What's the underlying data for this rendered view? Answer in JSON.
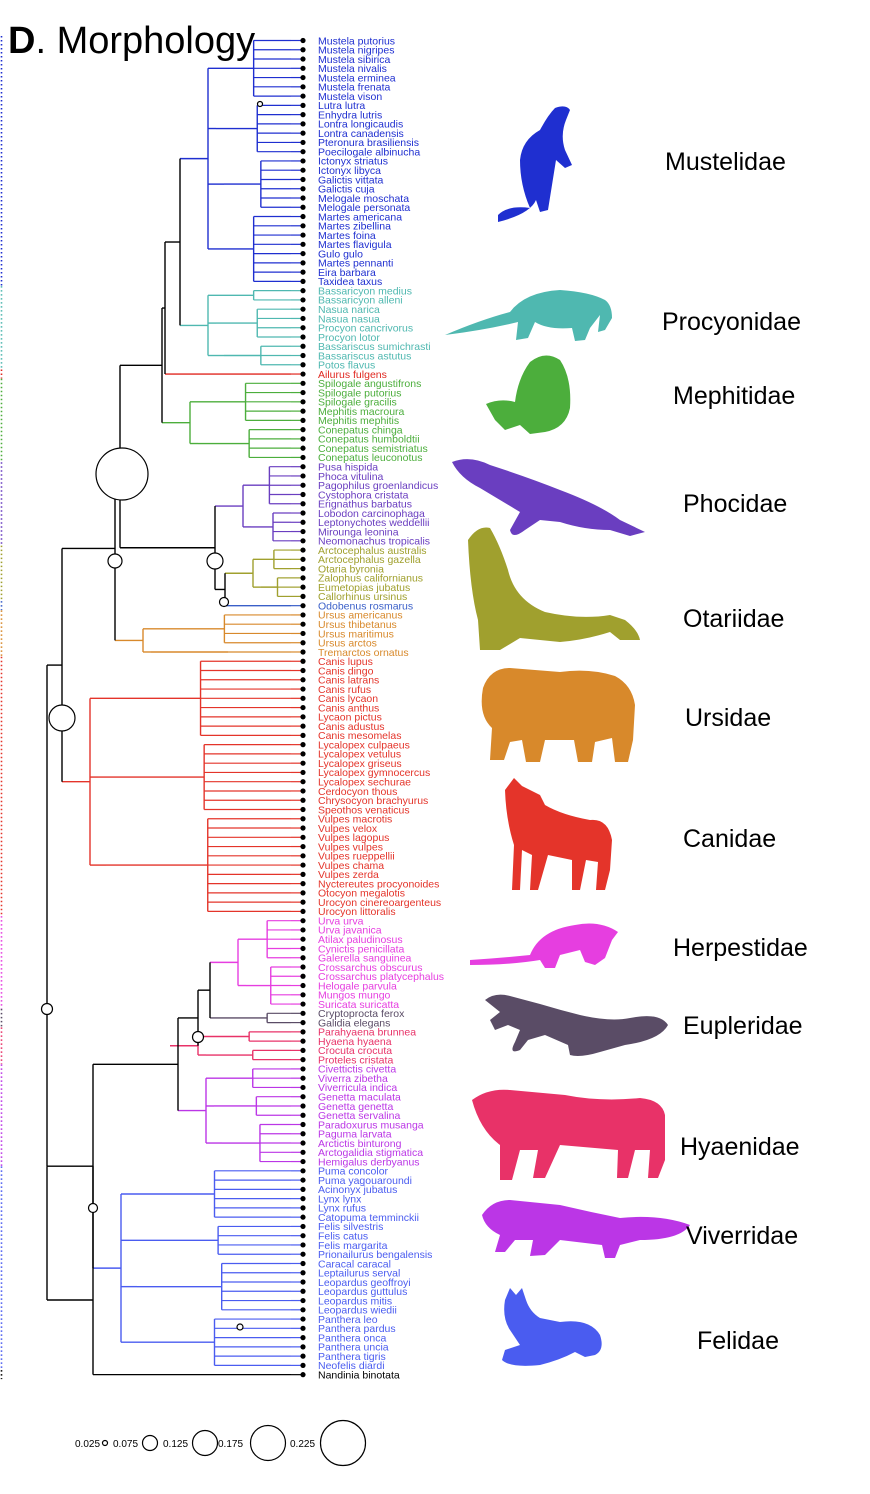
{
  "title_letter": "D",
  "title_text": ". Morphology",
  "colors": {
    "mustelidae": "#1f2fd0",
    "procyonidae": "#4fb8b0",
    "ailuridae": "#e02820",
    "mephitidae": "#4cae3c",
    "phocidae": "#6a3ec0",
    "otariidae": "#a0a02e",
    "odobenidae": "#3a5fc8",
    "ursidae": "#d8892b",
    "canidae": "#e4342a",
    "herpestidae": "#e63ee0",
    "eupleridae": "#5a4c66",
    "hyaenidae": "#e83268",
    "viverridae": "#bb36e6",
    "felidae": "#4a5cf0",
    "nandiniidae": "#000000"
  },
  "clades": [
    {
      "key": "mustelidae",
      "name": "Mustelidae",
      "silhouette": "weasel-silhouette",
      "tips": [
        "Mustela putorius",
        "Mustela nigripes",
        "Mustela sibirica",
        "Mustela nivalis",
        "Mustela erminea",
        "Mustela frenata",
        "Mustela vison",
        "Lutra lutra",
        "Enhydra lutris",
        "Lontra longicaudis",
        "Lontra canadensis",
        "Pteronura brasiliensis",
        "Poecilogale albinucha",
        "Ictonyx striatus",
        "Ictonyx libyca",
        "Galictis vittata",
        "Galictis cuja",
        "Melogale moschata",
        "Melogale personata",
        "Martes americana",
        "Martes zibellina",
        "Martes foina",
        "Martes flavigula",
        "Gulo gulo",
        "Martes pennanti",
        "Eira barbara",
        "Taxidea taxus"
      ]
    },
    {
      "key": "procyonidae",
      "name": "Procyonidae",
      "silhouette": "coati-silhouette",
      "tips": [
        "Bassaricyon medius",
        "Bassaricyon alleni",
        "Nasua narica",
        "Nasua nasua",
        "Procyon cancrivorus",
        "Procyon lotor",
        "Bassariscus sumichrasti",
        "Bassariscus astutus",
        "Potos flavus"
      ]
    },
    {
      "key": "ailuridae",
      "name": "",
      "silhouette": "",
      "tips": [
        "Ailurus fulgens"
      ]
    },
    {
      "key": "mephitidae",
      "name": "Mephitidae",
      "silhouette": "skunk-silhouette",
      "tips": [
        "Spilogale angustifrons",
        "Spilogale putorius",
        "Spilogale gracilis",
        "Mephitis macroura",
        "Mephitis mephitis",
        "Conepatus chinga",
        "Conepatus humboldtii",
        "Conepatus semistriatus",
        "Conepatus leuconotus"
      ]
    },
    {
      "key": "phocidae",
      "name": "Phocidae",
      "silhouette": "seal-silhouette",
      "tips": [
        "Pusa hispida",
        "Phoca vitulina",
        "Pagophilus groenlandicus",
        "Cystophora cristata",
        "Erignathus barbatus",
        "Lobodon carcinophaga",
        "Leptonychotes weddellii",
        "Mirounga leonina",
        "Neomonachus tropicalis"
      ]
    },
    {
      "key": "otariidae",
      "name": "Otariidae",
      "silhouette": "sea-lion-silhouette",
      "tips": [
        "Arctocephalus australis",
        "Arctocephalus gazella",
        "Otaria byronia",
        "Zalophus californianus",
        "Eumetopias jubatus",
        "Callorhinus ursinus"
      ]
    },
    {
      "key": "odobenidae",
      "name": "",
      "silhouette": "",
      "tips": [
        "Odobenus rosmarus"
      ]
    },
    {
      "key": "ursidae",
      "name": "Ursidae",
      "silhouette": "bear-silhouette",
      "tips": [
        "Ursus americanus",
        "Ursus thibetanus",
        "Ursus maritimus",
        "Ursus arctos",
        "Tremarctos ornatus"
      ]
    },
    {
      "key": "canidae",
      "name": "Canidae",
      "silhouette": "wolf-silhouette",
      "tips": [
        "Canis lupus",
        "Canis dingo",
        "Canis latrans",
        "Canis rufus",
        "Canis lycaon",
        "Canis anthus",
        "Lycaon pictus",
        "Canis adustus",
        "Canis mesomelas",
        "Lycalopex culpaeus",
        "Lycalopex vetulus",
        "Lycalopex griseus",
        "Lycalopex gymnocercus",
        "Lycalopex sechurae",
        "Cerdocyon thous",
        "Chrysocyon brachyurus",
        "Speothos venaticus",
        "Vulpes macrotis",
        "Vulpes velox",
        "Vulpes lagopus",
        "Vulpes vulpes",
        "Vulpes rueppellii",
        "Vulpes chama",
        "Vulpes zerda",
        "Nyctereutes procyonoides",
        "Otocyon megalotis",
        "Urocyon cinereoargenteus",
        "Urocyon littoralis"
      ]
    },
    {
      "key": "herpestidae",
      "name": "Herpestidae",
      "silhouette": "mongoose-silhouette",
      "tips": [
        "Urva urva",
        "Urva javanica",
        "Atilax paludinosus",
        "Cynictis penicillata",
        "Galerella sanguinea",
        "Crossarchus obscurus",
        "Crossarchus platycephalus",
        "Helogale parvula",
        "Mungos mungo",
        "Suricata suricatta"
      ]
    },
    {
      "key": "eupleridae",
      "name": "Eupleridae",
      "silhouette": "fossa-silhouette",
      "tips": [
        "Cryptoprocta ferox",
        "Galidia elegans"
      ]
    },
    {
      "key": "hyaenidae",
      "name": "Hyaenidae",
      "silhouette": "hyena-silhouette",
      "tips": [
        "Parahyaena brunnea",
        "Hyaena hyaena",
        "Crocuta crocuta",
        "Proteles cristata"
      ]
    },
    {
      "key": "viverridae",
      "name": "Viverridae",
      "silhouette": "civet-silhouette",
      "tips": [
        "Civettictis civetta",
        "Viverra zibetha",
        "Viverricula indica",
        "Genetta maculata",
        "Genetta genetta",
        "Genetta servalina",
        "Paradoxurus musanga",
        "Paguma larvata",
        "Arctictis binturong",
        "Arctogalidia stigmatica",
        "Hemigalus derbyanus"
      ]
    },
    {
      "key": "felidae",
      "name": "Felidae",
      "silhouette": "cat-silhouette",
      "tips": [
        "Puma concolor",
        "Puma yagouaroundi",
        "Acinonyx jubatus",
        "Lynx lynx",
        "Lynx rufus",
        "Catopuma temminckii",
        "Felis silvestris",
        "Felis catus",
        "Felis margarita",
        "Prionailurus bengalensis",
        "Caracal caracal",
        "Leptailurus serval",
        "Leopardus geoffroyi",
        "Leopardus guttulus",
        "Leopardus mitis",
        "Leopardus wiedii",
        "Panthera leo",
        "Panthera pardus",
        "Panthera onca",
        "Panthera uncia",
        "Panthera tigris",
        "Neofelis diardi"
      ]
    },
    {
      "key": "nandiniidae",
      "name": "",
      "silhouette": "",
      "tips": [
        "Nandinia binotata"
      ]
    }
  ],
  "size_legend": [
    "0.025",
    "0.075",
    "0.125",
    "0.175",
    "0.225"
  ]
}
